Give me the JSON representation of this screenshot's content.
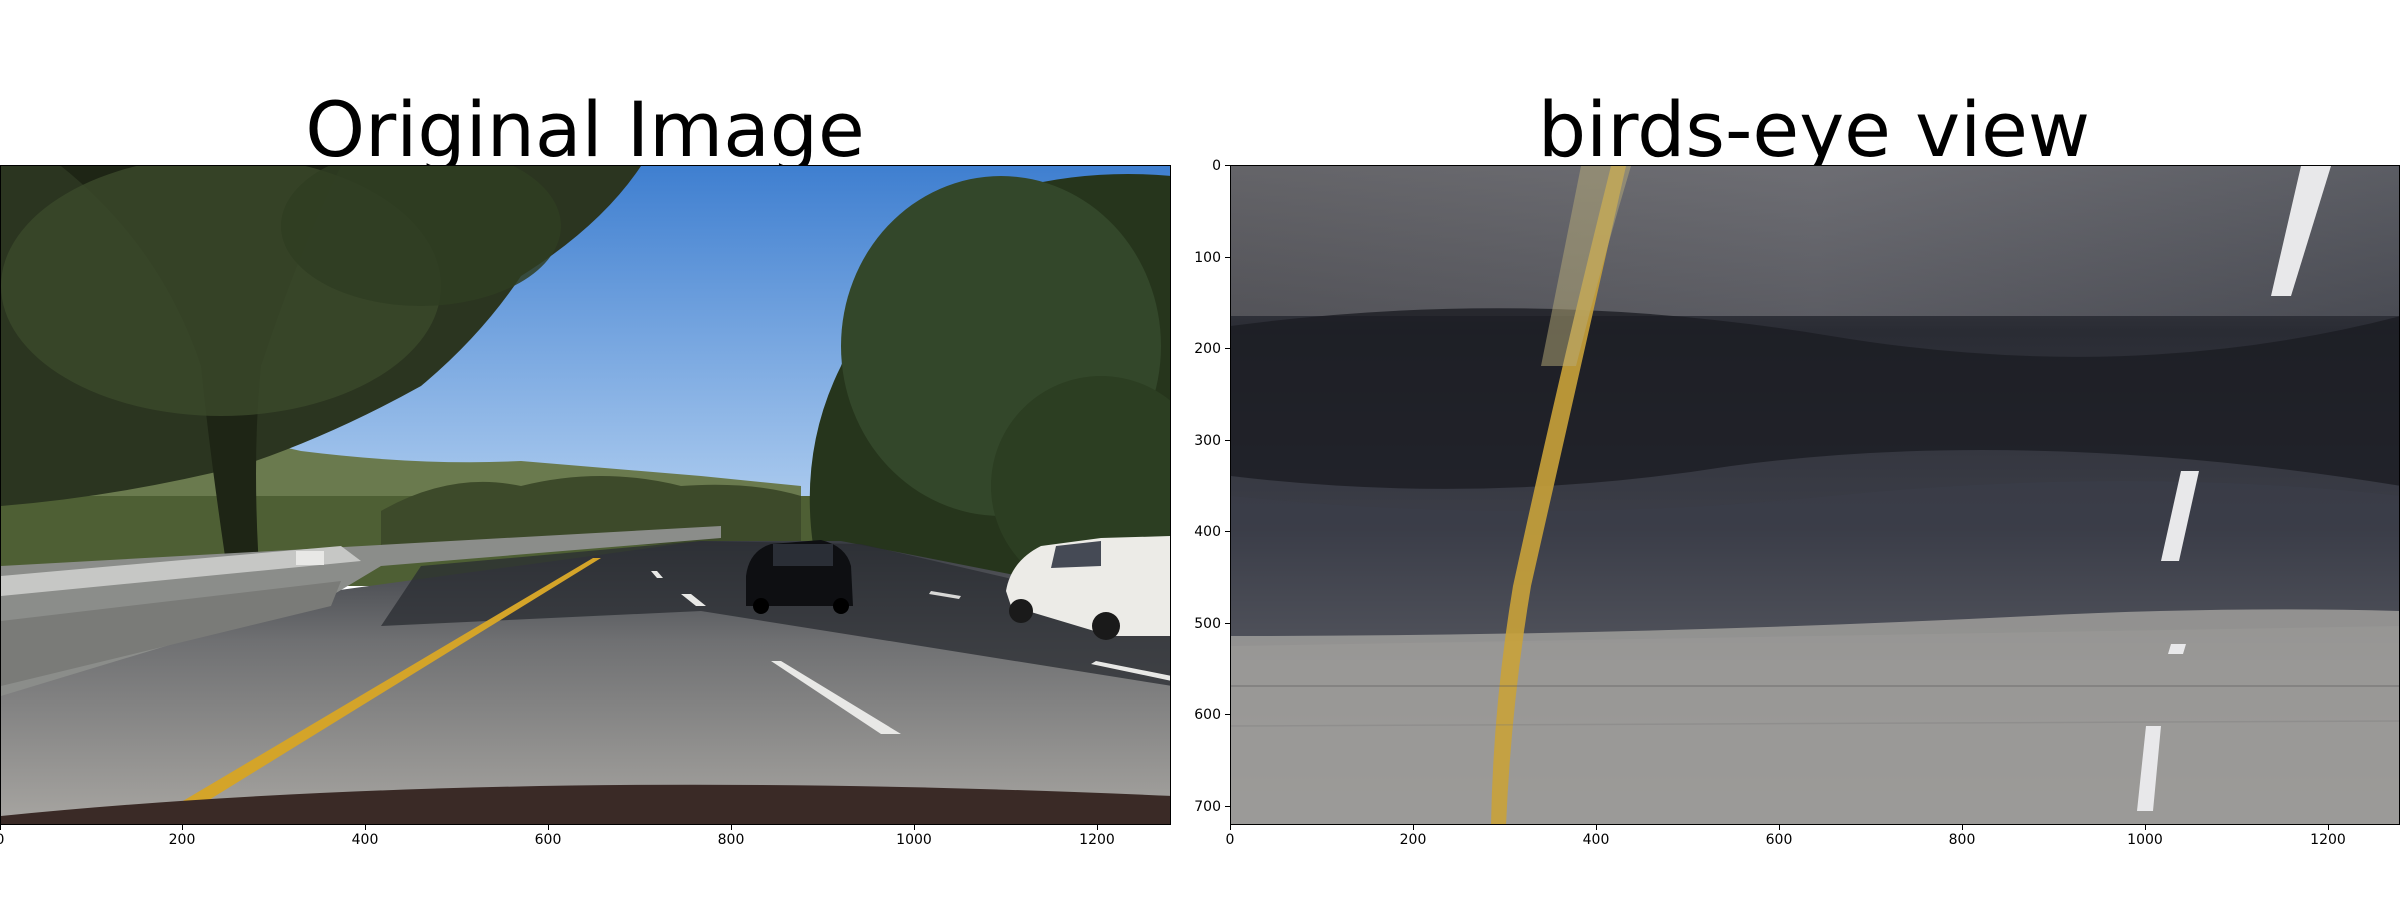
{
  "figure": {
    "panels": [
      {
        "title": "Original Image",
        "x_ticks": [
          "0",
          "200",
          "400",
          "600",
          "800",
          "1000",
          "1200"
        ],
        "y_ticks": []
      },
      {
        "title": "birds-eye view",
        "x_ticks": [
          "0",
          "200",
          "400",
          "600",
          "800",
          "1000",
          "1200"
        ],
        "y_ticks": [
          "0",
          "100",
          "200",
          "300",
          "400",
          "500",
          "600",
          "700"
        ]
      }
    ]
  }
}
